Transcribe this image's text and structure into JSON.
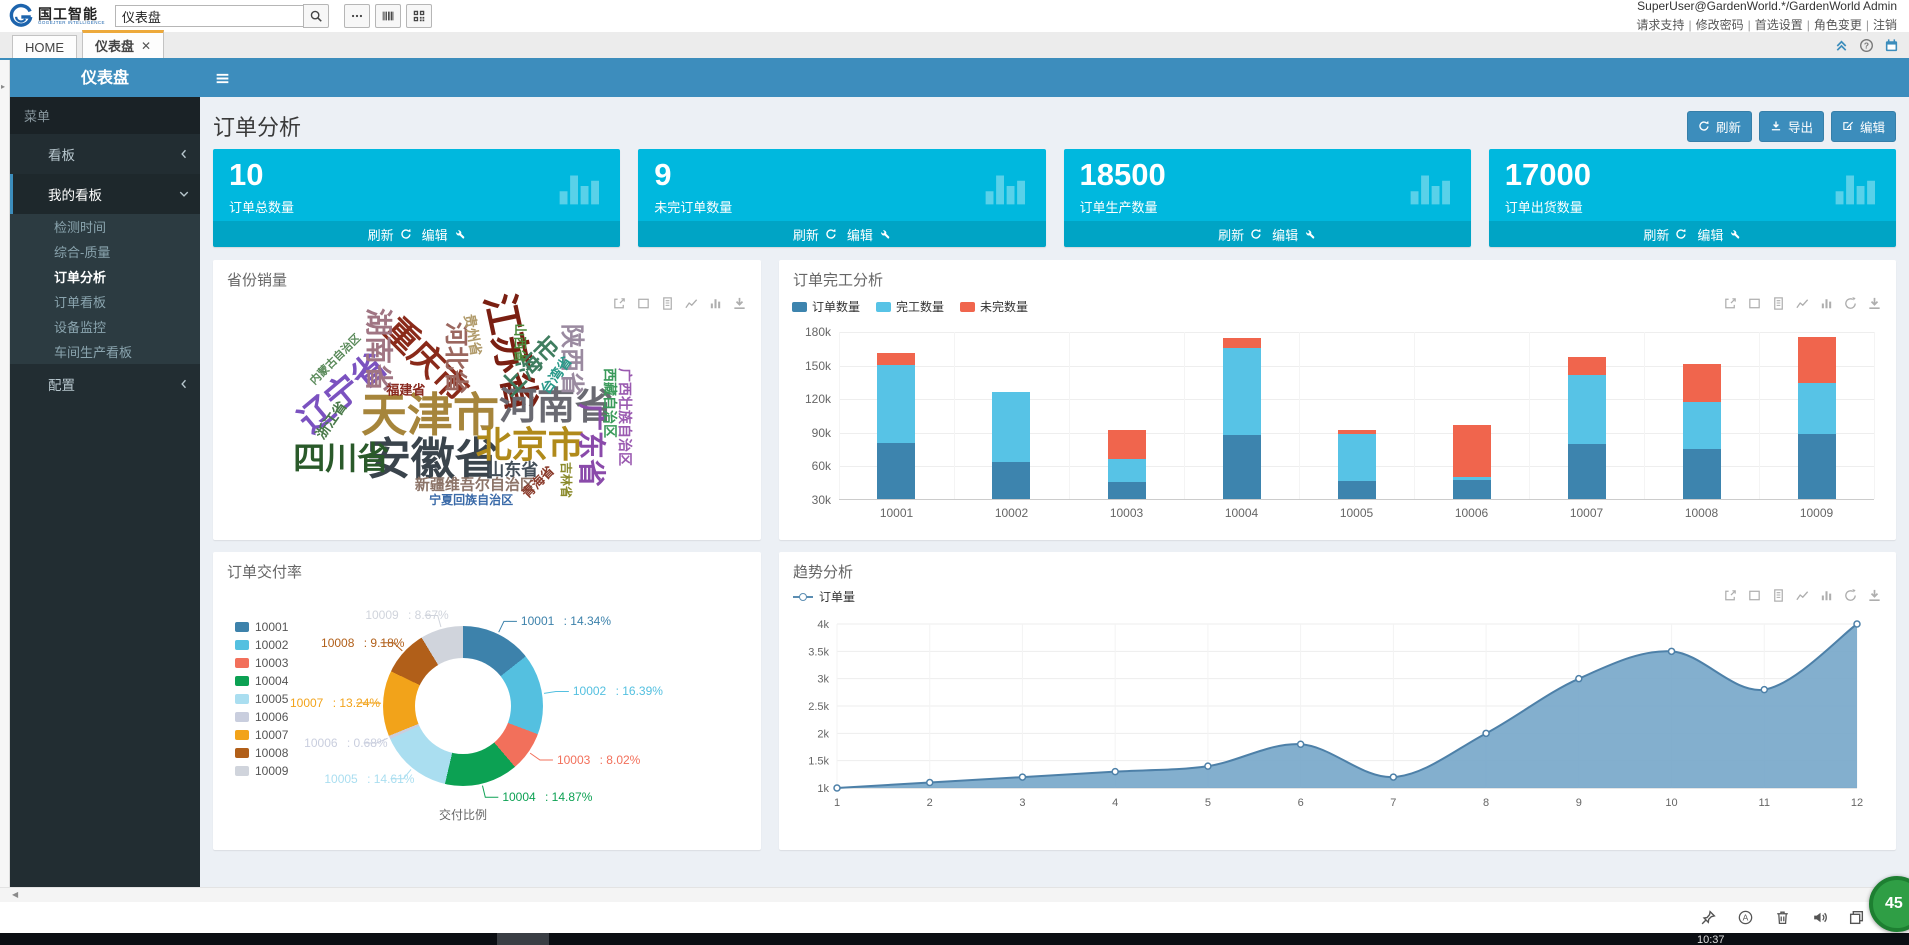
{
  "topbar": {
    "logo_title": "国工智能",
    "logo_subtitle": "GOGEJTER INTELLIGENCE",
    "search_value": "仪表盘",
    "user_info": "SuperUser@GardenWorld.*/GardenWorld Admin",
    "links": [
      "请求支持",
      "修改密码",
      "首选设置",
      "角色变更",
      "注销"
    ]
  },
  "tabs": [
    {
      "label": "HOME",
      "active": false,
      "closable": false
    },
    {
      "label": "仪表盘",
      "active": true,
      "closable": true
    }
  ],
  "sidebar": {
    "header": "仪表盘",
    "search_placeholder": "菜单",
    "items": [
      {
        "label": "看板",
        "icon": "grid-icon",
        "level": 0,
        "chevron": "left"
      },
      {
        "label": "我的看板",
        "icon": "grid-icon",
        "level": 0,
        "chevron": "down",
        "active": true
      },
      {
        "label": "检测时间",
        "icon": "gauge-icon",
        "level": 1
      },
      {
        "label": "综合-质量",
        "icon": "gauge-icon",
        "level": 1
      },
      {
        "label": "订单分析",
        "icon": "gauge-icon",
        "level": 1,
        "active": true
      },
      {
        "label": "订单看板",
        "icon": "gauge-icon",
        "level": 1
      },
      {
        "label": "设备监控",
        "icon": "gauge-icon",
        "level": 1
      },
      {
        "label": "车间生产看板",
        "icon": "gauge-icon",
        "level": 1
      },
      {
        "label": "配置",
        "icon": "gear-icon",
        "level": 0,
        "chevron": "left"
      }
    ]
  },
  "page": {
    "title": "订单分析",
    "actions": [
      {
        "label": "刷新",
        "icon": "refresh"
      },
      {
        "label": "导出",
        "icon": "download"
      },
      {
        "label": "编辑",
        "icon": "edit"
      }
    ]
  },
  "kpi_cards": [
    {
      "value": "10",
      "label": "订单总数量"
    },
    {
      "value": "9",
      "label": "未完订单数量"
    },
    {
      "value": "18500",
      "label": "订单生产数量"
    },
    {
      "value": "17000",
      "label": "订单出货数量"
    }
  ],
  "kpi_footer": {
    "refresh": "刷新",
    "edit": "编辑"
  },
  "chart_data": [
    {
      "type": "wordcloud",
      "title": "省份销量",
      "toolbox": [
        "zoombox",
        "resetbox",
        "dataview",
        "linechart",
        "barchart",
        "download"
      ],
      "words": [
        {
          "text": "天津市",
          "size": 46,
          "color": "#a6853b",
          "x": 39.6,
          "y": 55.4,
          "rot": 0
        },
        {
          "text": "安徽省",
          "size": 44,
          "color": "#3a444c",
          "x": 40.1,
          "y": 71.4,
          "rot": 0
        },
        {
          "text": "江苏省",
          "size": 40,
          "color": "#7a1f12",
          "x": 54.2,
          "y": 33.2,
          "rot": 78
        },
        {
          "text": "河南省",
          "size": 38,
          "color": "#6a6a72",
          "x": 62.6,
          "y": 52.5,
          "rot": 0
        },
        {
          "text": "北京市",
          "size": 36,
          "color": "#b08a1a",
          "x": 57.8,
          "y": 66.1,
          "rot": 0
        },
        {
          "text": "重庆市",
          "size": 34,
          "color": "#8a2a1a",
          "x": 38.9,
          "y": 35.7,
          "rot": 45
        },
        {
          "text": "辽宁省",
          "size": 34,
          "color": "#7b52c0",
          "x": 23.7,
          "y": 47.5,
          "rot": -40
        },
        {
          "text": "四川省",
          "size": 32,
          "color": "#2a5a2a",
          "x": 23.4,
          "y": 70.7,
          "rot": 0
        },
        {
          "text": "湖南省",
          "size": 28,
          "color": "#a07583",
          "x": 30.1,
          "y": 32.1,
          "rot": 90
        },
        {
          "text": "广东省",
          "size": 28,
          "color": "#8a4aaa",
          "x": 69.0,
          "y": 66.1,
          "rot": 90
        },
        {
          "text": "河北省",
          "size": 24,
          "color": "#9b675f",
          "x": 44.2,
          "y": 35.0,
          "rot": 90
        },
        {
          "text": "上海市",
          "size": 24,
          "color": "#3f7d5f",
          "x": 58.0,
          "y": 38.2,
          "rot": -45
        },
        {
          "text": "陕西省",
          "size": 24,
          "color": "#9a8aa0",
          "x": 65.3,
          "y": 35.7,
          "rot": 90
        },
        {
          "text": "山东省",
          "size": 17,
          "color": "#44505a",
          "x": 54.7,
          "y": 75.0,
          "rot": 0
        },
        {
          "text": "新疆维吾尔自治区",
          "size": 15,
          "color": "#8c7468",
          "x": 47.8,
          "y": 80.4,
          "rot": 0
        },
        {
          "text": "广西壮族自治区",
          "size": 14,
          "color": "#9a5ab0",
          "x": 75.2,
          "y": 56.1,
          "rot": 90
        },
        {
          "text": "西藏自治区",
          "size": 14,
          "color": "#3a9a5a",
          "x": 72.4,
          "y": 51.1,
          "rot": 90
        },
        {
          "text": "浙江省",
          "size": 14,
          "color": "#4a7a4a",
          "x": 21.5,
          "y": 57.1,
          "rot": -55
        },
        {
          "text": "台湾省",
          "size": 14,
          "color": "#2a9a8a",
          "x": 62.6,
          "y": 41.1,
          "rot": -55
        },
        {
          "text": "贵州省",
          "size": 14,
          "color": "#b09a6a",
          "x": 47.4,
          "y": 26.8,
          "rot": 80
        },
        {
          "text": "福建省",
          "size": 13,
          "color": "#8a2a20",
          "x": 35.2,
          "y": 46.4,
          "rot": 0
        },
        {
          "text": "山西省",
          "size": 13,
          "color": "#4a8a3a",
          "x": 56.0,
          "y": 29.6,
          "rot": 90
        },
        {
          "text": "青海省",
          "size": 13,
          "color": "#8a3a2a",
          "x": 59.3,
          "y": 79.3,
          "rot": -45
        },
        {
          "text": "吉林省",
          "size": 12,
          "color": "#8a8a2a",
          "x": 64.4,
          "y": 78.6,
          "rot": 90
        },
        {
          "text": "宁夏回族自治区",
          "size": 12,
          "color": "#3a6aa8",
          "x": 47.1,
          "y": 85.7,
          "rot": 0
        },
        {
          "text": "内蒙古自治区",
          "size": 11,
          "color": "#5a8a5a",
          "x": 22.4,
          "y": 35.7,
          "rot": -45
        }
      ]
    },
    {
      "type": "bar",
      "title": "订单完工分析",
      "stacked": true,
      "toolbox": [
        "zoombox",
        "resetbox",
        "dataview",
        "linechart",
        "barchart",
        "restore",
        "download"
      ],
      "categories": [
        "10001",
        "10002",
        "10003",
        "10004",
        "10005",
        "10006",
        "10007",
        "10008",
        "10009"
      ],
      "series": [
        {
          "name": "订单数量",
          "color": "#3d84ae",
          "values": [
            80000,
            63000,
            45000,
            87000,
            46000,
            47000,
            79000,
            75000,
            88000
          ]
        },
        {
          "name": "完工数量",
          "color": "#57c3e6",
          "values": [
            70000,
            63000,
            21000,
            78000,
            42000,
            3000,
            62000,
            42000,
            46000
          ]
        },
        {
          "name": "未完数量",
          "color": "#f0654d",
          "values": [
            10000,
            0,
            26000,
            9000,
            4000,
            46000,
            16000,
            34000,
            41000
          ]
        }
      ],
      "ylim": [
        30000,
        180000
      ],
      "yticks": [
        "30k",
        "60k",
        "90k",
        "120k",
        "150k",
        "180k"
      ],
      "grid": true
    },
    {
      "type": "pie",
      "title": "订单交付率",
      "center_label": "交付比例",
      "slices": [
        {
          "name": "10001",
          "pct": 14.34,
          "color": "#3d82ab"
        },
        {
          "name": "10002",
          "pct": 16.39,
          "color": "#54c0e0"
        },
        {
          "name": "10003",
          "pct": 8.02,
          "color": "#f2705b"
        },
        {
          "name": "10004",
          "pct": 14.87,
          "color": "#0ca153"
        },
        {
          "name": "10005",
          "pct": 14.61,
          "color": "#aadef0"
        },
        {
          "name": "10006",
          "pct": 0.68,
          "color": "#c9cede"
        },
        {
          "name": "10007",
          "pct": 13.24,
          "color": "#f2a31a"
        },
        {
          "name": "10008",
          "pct": 9.18,
          "color": "#b15f19"
        },
        {
          "name": "10009",
          "pct": 8.67,
          "color": "#d0d4dc"
        }
      ],
      "legend_position": "left"
    },
    {
      "type": "area",
      "title": "趋势分析",
      "legend": "订单量",
      "toolbox": [
        "zoombox",
        "resetbox",
        "dataview",
        "linechart",
        "barchart",
        "restore",
        "download"
      ],
      "x": [
        1,
        2,
        3,
        4,
        5,
        6,
        7,
        8,
        9,
        10,
        11,
        12
      ],
      "values": [
        1000,
        1100,
        1200,
        1300,
        1400,
        1800,
        1200,
        2000,
        3000,
        3500,
        2800,
        4000
      ],
      "ylim": [
        1000,
        4000
      ],
      "yticks": [
        "1k",
        "1.5k",
        "2k",
        "2.5k",
        "3k",
        "3.5k",
        "4k"
      ],
      "line_color": "#4d80a8",
      "fill_color": "#76a6c9",
      "grid": true
    }
  ],
  "bottom": {
    "icons": [
      "pin-icon",
      "feedback-icon",
      "trash-icon",
      "speaker-icon",
      "window-icon",
      "magnifier-icon"
    ],
    "badge": "45",
    "clock": "10:37"
  }
}
